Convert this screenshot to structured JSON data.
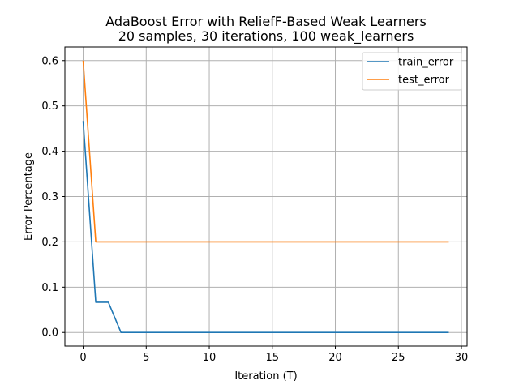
{
  "chart_data": {
    "type": "line",
    "title": [
      "AdaBoost Error with ReliefF-Based Weak Learners",
      "20 samples, 30 iterations, 100 weak_learners"
    ],
    "xlabel": "Iteration (T)",
    "ylabel": "Error Percentage",
    "xlim": [
      -1.45,
      30.45
    ],
    "ylim": [
      -0.03,
      0.63
    ],
    "xticks": [
      0,
      5,
      10,
      15,
      20,
      25,
      30
    ],
    "yticks": [
      0.0,
      0.1,
      0.2,
      0.3,
      0.4,
      0.5,
      0.6
    ],
    "x_tick_labels": [
      "0",
      "5",
      "10",
      "15",
      "20",
      "25",
      "30"
    ],
    "y_tick_labels": [
      "0.0",
      "0.1",
      "0.2",
      "0.3",
      "0.4",
      "0.5",
      "0.6"
    ],
    "grid": true,
    "legend_position": "top-right",
    "x": [
      0,
      1,
      2,
      3,
      4,
      5,
      6,
      7,
      8,
      9,
      10,
      11,
      12,
      13,
      14,
      15,
      16,
      17,
      18,
      19,
      20,
      21,
      22,
      23,
      24,
      25,
      26,
      27,
      28,
      29
    ],
    "series": [
      {
        "name": "train_error",
        "color": "#1f77b4",
        "values": [
          0.4667,
          0.0667,
          0.0667,
          0,
          0,
          0,
          0,
          0,
          0,
          0,
          0,
          0,
          0,
          0,
          0,
          0,
          0,
          0,
          0,
          0,
          0,
          0,
          0,
          0,
          0,
          0,
          0,
          0,
          0,
          0
        ]
      },
      {
        "name": "test_error",
        "color": "#ff7f0e",
        "values": [
          0.6,
          0.2,
          0.2,
          0.2,
          0.2,
          0.2,
          0.2,
          0.2,
          0.2,
          0.2,
          0.2,
          0.2,
          0.2,
          0.2,
          0.2,
          0.2,
          0.2,
          0.2,
          0.2,
          0.2,
          0.2,
          0.2,
          0.2,
          0.2,
          0.2,
          0.2,
          0.2,
          0.2,
          0.2,
          0.2
        ]
      }
    ]
  }
}
